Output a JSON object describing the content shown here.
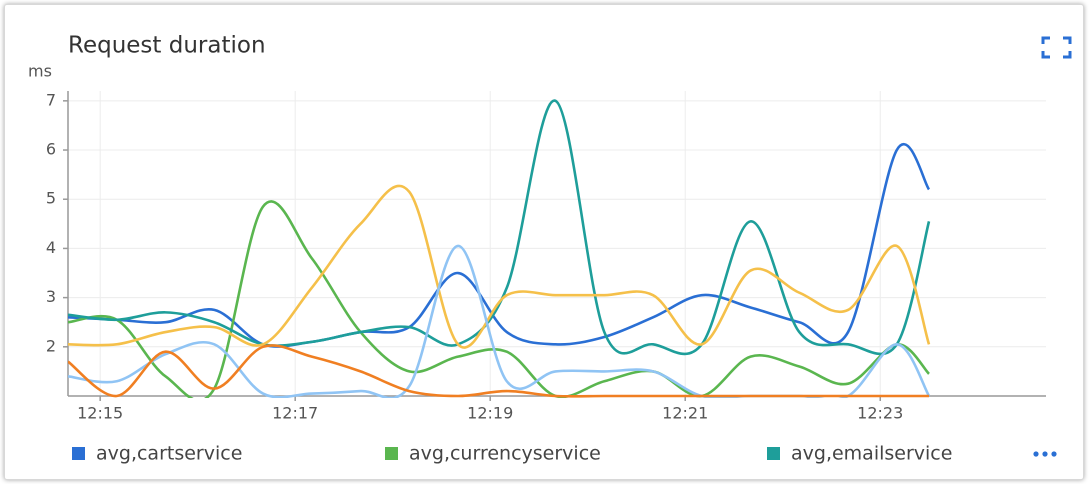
{
  "chart_data": {
    "type": "line",
    "title": "Request duration",
    "y_label": "ms",
    "x": [
      14.67,
      15.17,
      15.67,
      16.17,
      16.67,
      17.17,
      17.67,
      18.17,
      18.67,
      19.17,
      19.67,
      20.17,
      20.67,
      21.17,
      21.67,
      22.17,
      22.67,
      23.17,
      23.5
    ],
    "xlim": [
      14.67,
      24.7
    ],
    "xticks": [
      {
        "value": 15,
        "label": "12:15"
      },
      {
        "value": 17,
        "label": "12:17"
      },
      {
        "value": 19,
        "label": "12:19"
      },
      {
        "value": 21,
        "label": "12:21"
      },
      {
        "value": 23,
        "label": "12:23"
      }
    ],
    "ylim": [
      1,
      7.2
    ],
    "yticks": [
      2,
      3,
      4,
      5,
      6,
      7
    ],
    "grid": true,
    "legend": "bottom",
    "series": [
      {
        "name": "avg,cartservice",
        "color": "#2a6fd4",
        "values": [
          2.6,
          2.55,
          2.5,
          2.75,
          2.05,
          2.1,
          2.3,
          2.4,
          3.5,
          2.3,
          2.05,
          2.2,
          2.6,
          3.05,
          2.8,
          2.5,
          2.3,
          6.0,
          5.2
        ]
      },
      {
        "name": "avg,currencyservice",
        "color": "#5ab64f",
        "values": [
          2.5,
          2.55,
          1.4,
          1.15,
          4.85,
          3.8,
          2.3,
          1.5,
          1.8,
          1.9,
          1.0,
          1.3,
          1.5,
          1.0,
          1.8,
          1.6,
          1.25,
          2.05,
          1.45
        ]
      },
      {
        "name": "avg,emailservice",
        "color": "#1e9e9a",
        "values": [
          2.65,
          2.55,
          2.7,
          2.5,
          2.05,
          2.1,
          2.3,
          2.4,
          2.05,
          3.2,
          7.0,
          2.3,
          2.05,
          2.05,
          4.55,
          2.3,
          2.05,
          2.05,
          4.55
        ]
      },
      {
        "color": "#f5c04a",
        "values": [
          2.05,
          2.05,
          2.3,
          2.4,
          2.05,
          3.2,
          4.5,
          5.15,
          2.05,
          3.05,
          3.05,
          3.05,
          3.05,
          2.05,
          3.55,
          3.1,
          2.75,
          4.05,
          2.05
        ]
      },
      {
        "color": "#90c4f4",
        "values": [
          1.4,
          1.3,
          1.85,
          2.05,
          1.05,
          1.05,
          1.1,
          1.2,
          4.05,
          1.3,
          1.5,
          1.5,
          1.5,
          1.0,
          1.0,
          1.0,
          1.0,
          2.05,
          1.0
        ]
      },
      {
        "color": "#f07f22",
        "values": [
          1.7,
          1.0,
          1.9,
          1.15,
          2.0,
          1.8,
          1.5,
          1.1,
          1.0,
          1.1,
          1.0,
          1.0,
          1.0,
          1.0,
          1.0,
          1.0,
          1.0,
          1.0,
          1.0
        ]
      }
    ]
  }
}
